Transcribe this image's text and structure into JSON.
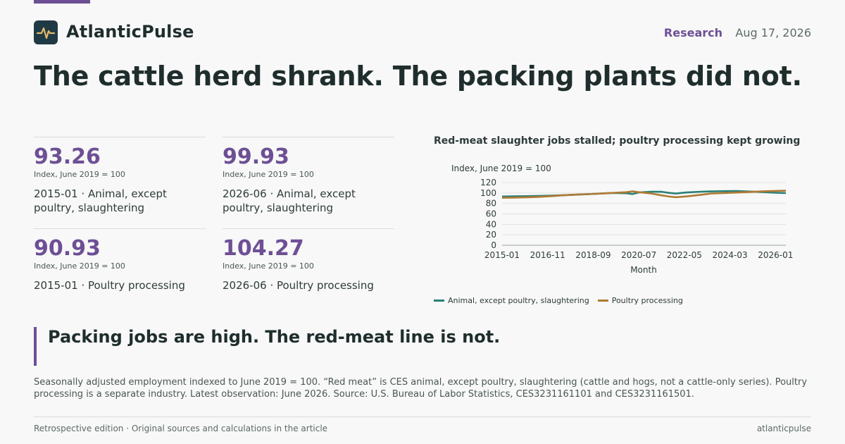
{
  "brand": {
    "name": "AtlanticPulse",
    "logo_icon": "pulse-icon"
  },
  "header": {
    "section": "Research",
    "date": "Aug 17, 2026"
  },
  "headline": "The cattle herd shrank. The packing plants did not.",
  "stats": [
    {
      "value": "93.26",
      "unit": "Index, June 2019 = 100",
      "desc": "2015-01 · Animal, except poultry, slaughtering"
    },
    {
      "value": "99.93",
      "unit": "Index, June 2019 = 100",
      "desc": "2026-06 · Animal, except poultry, slaughtering"
    },
    {
      "value": "90.93",
      "unit": "Index, June 2019 = 100",
      "desc": "2015-01 · Poultry processing"
    },
    {
      "value": "104.27",
      "unit": "Index, June 2019 = 100",
      "desc": "2026-06 · Poultry processing"
    }
  ],
  "chart_data": {
    "type": "line",
    "title": "Red-meat slaughter jobs stalled; poultry processing kept growing",
    "ylabel": "Index, June 2019 = 100",
    "xlabel": "Month",
    "ylim": [
      0,
      120
    ],
    "yticks": [
      "0",
      "20",
      "40",
      "60",
      "80",
      "100",
      "120"
    ],
    "xticks": [
      "2015-01",
      "2016-11",
      "2018-09",
      "2020-07",
      "2022-05",
      "2024-03",
      "2026-01"
    ],
    "grid": true,
    "legend_position": "bottom-left",
    "series": [
      {
        "name": "Animal, except poultry, slaughtering",
        "color": "#2a7f77",
        "points": [
          [
            "2015-01",
            93.3
          ],
          [
            "2015-06",
            93.6
          ],
          [
            "2016-01",
            94.0
          ],
          [
            "2016-06",
            94.3
          ],
          [
            "2017-01",
            95.0
          ],
          [
            "2017-06",
            95.6
          ],
          [
            "2018-01",
            96.8
          ],
          [
            "2018-06",
            97.6
          ],
          [
            "2019-01",
            99.0
          ],
          [
            "2019-06",
            100.0
          ],
          [
            "2020-01",
            99.5
          ],
          [
            "2020-04",
            98.0
          ],
          [
            "2020-07",
            101.0
          ],
          [
            "2021-01",
            102.5
          ],
          [
            "2021-06",
            102.3
          ],
          [
            "2021-10",
            100.0
          ],
          [
            "2022-01",
            99.0
          ],
          [
            "2022-06",
            101.0
          ],
          [
            "2023-01",
            102.5
          ],
          [
            "2023-06",
            103.0
          ],
          [
            "2024-01",
            103.5
          ],
          [
            "2024-06",
            103.8
          ],
          [
            "2025-01",
            102.8
          ],
          [
            "2025-06",
            101.8
          ],
          [
            "2026-01",
            100.5
          ],
          [
            "2026-06",
            99.9
          ]
        ]
      },
      {
        "name": "Poultry processing",
        "color": "#b07a34",
        "points": [
          [
            "2015-01",
            90.9
          ],
          [
            "2015-06",
            91.2
          ],
          [
            "2016-01",
            91.8
          ],
          [
            "2016-06",
            92.5
          ],
          [
            "2017-01",
            94.0
          ],
          [
            "2017-06",
            95.5
          ],
          [
            "2018-01",
            97.0
          ],
          [
            "2018-06",
            97.8
          ],
          [
            "2019-01",
            99.0
          ],
          [
            "2019-06",
            100.0
          ],
          [
            "2020-01",
            101.5
          ],
          [
            "2020-04",
            103.0
          ],
          [
            "2020-07",
            101.5
          ],
          [
            "2021-01",
            99.0
          ],
          [
            "2021-06",
            95.5
          ],
          [
            "2021-10",
            93.0
          ],
          [
            "2022-01",
            92.0
          ],
          [
            "2022-06",
            93.5
          ],
          [
            "2023-01",
            96.5
          ],
          [
            "2023-06",
            99.0
          ],
          [
            "2024-01",
            100.0
          ],
          [
            "2024-06",
            100.8
          ],
          [
            "2025-01",
            102.0
          ],
          [
            "2025-06",
            103.0
          ],
          [
            "2026-01",
            104.0
          ],
          [
            "2026-06",
            104.3
          ]
        ]
      }
    ]
  },
  "pull_quote": "Packing jobs are high. The red-meat line is not.",
  "note": "Seasonally adjusted employment indexed to June 2019 = 100. “Red meat” is CES animal, except poultry, slaughtering (cattle and hogs, not a cattle-only series). Poultry processing is a separate industry. Latest observation: June 2026. Source: U.S. Bureau of Labor Statistics, CES3231161101 and CES3231161501.",
  "footer": {
    "left": "Retrospective edition · Original sources and calculations in the article",
    "right": "atlanticpulse"
  }
}
